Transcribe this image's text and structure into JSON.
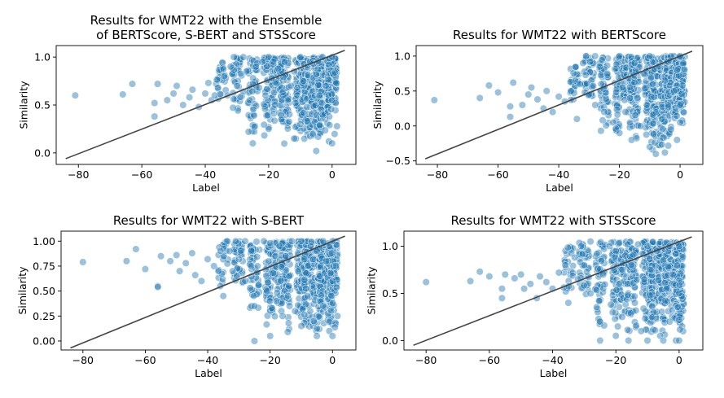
{
  "chart_data": [
    {
      "type": "scatter",
      "title": [
        "Results for WMT22 with the Ensemble",
        "of BERTScore, S-BERT and STSScore"
      ],
      "xlabel": "Label",
      "ylabel": "Similarity",
      "xlim": [
        -87,
        7.5
      ],
      "ylim": [
        -0.12,
        1.12
      ],
      "xticks": [
        -80,
        -60,
        -40,
        -20,
        0
      ],
      "xtick_labels": [
        "−80",
        "−60",
        "−40",
        "−20",
        "0"
      ],
      "yticks": [
        0.0,
        0.5,
        1.0
      ],
      "ytick_labels": [
        "0.0",
        "0.5",
        "1.0"
      ],
      "point_color": "#1f77b4",
      "fit_line": {
        "x": [
          -84,
          4
        ],
        "y": [
          -0.06,
          1.07
        ],
        "color": "#444444"
      },
      "points": [
        [
          -81,
          0.6
        ],
        [
          -66,
          0.61
        ],
        [
          -63,
          0.72
        ],
        [
          -56,
          0.52
        ],
        [
          -56,
          0.38
        ],
        [
          -55,
          0.72
        ],
        [
          -52,
          0.55
        ],
        [
          -50,
          0.62
        ],
        [
          -49,
          0.7
        ],
        [
          -47,
          0.5
        ],
        [
          -45,
          0.58
        ],
        [
          -44,
          0.66
        ],
        [
          -42,
          0.48
        ],
        [
          -40,
          0.62
        ],
        [
          -39,
          0.73
        ],
        [
          -38,
          0.55
        ],
        [
          -37,
          0.6
        ],
        [
          -36,
          0.68
        ],
        [
          -34,
          0.8
        ],
        [
          -33,
          0.6
        ],
        [
          -32,
          0.9
        ],
        [
          -31,
          1.0
        ],
        [
          -30,
          0.7
        ],
        [
          -28,
          0.64
        ],
        [
          -28,
          1.0
        ],
        [
          -27,
          0.85
        ],
        [
          -26,
          0.55
        ],
        [
          -25,
          0.72
        ],
        [
          -25,
          0.1
        ],
        [
          -24,
          0.9
        ],
        [
          -23,
          0.68
        ],
        [
          -22,
          0.95
        ],
        [
          -21,
          0.6
        ],
        [
          -20,
          1.0
        ],
        [
          -20,
          0.25
        ],
        [
          -19,
          0.78
        ],
        [
          -18,
          0.5
        ],
        [
          -17,
          0.88
        ],
        [
          -16,
          0.35
        ],
        [
          -15,
          0.95
        ],
        [
          -14,
          0.55
        ],
        [
          -13,
          0.7
        ],
        [
          -12,
          0.85
        ],
        [
          -12,
          0.15
        ],
        [
          -11,
          0.6
        ],
        [
          -10,
          1.0
        ],
        [
          -10,
          0.3
        ],
        [
          -9,
          0.75
        ],
        [
          -8,
          0.48
        ],
        [
          -7,
          0.95
        ],
        [
          -6,
          0.2
        ],
        [
          -5,
          0.82
        ],
        [
          -5,
          0.02
        ],
        [
          -4,
          0.6
        ],
        [
          -3,
          1.0
        ],
        [
          -3,
          0.4
        ],
        [
          -2,
          0.7
        ],
        [
          -1,
          0.92
        ],
        [
          -1,
          0.12
        ],
        [
          0,
          0.55
        ],
        [
          0,
          1.0
        ],
        [
          0,
          0.1
        ]
      ],
      "bands": [
        [
          -35,
          0.5,
          0.95,
          4
        ],
        [
          -30,
          0.4,
          1.0,
          6
        ],
        [
          -25,
          0.0,
          1.0,
          8
        ],
        [
          -20,
          0.1,
          1.0,
          10
        ],
        [
          -17,
          0.3,
          1.0,
          8
        ],
        [
          -15,
          0.0,
          1.0,
          12
        ],
        [
          -10,
          0.1,
          1.0,
          14
        ],
        [
          -8,
          0.1,
          1.0,
          12
        ],
        [
          -5,
          0.0,
          1.0,
          14
        ],
        [
          -3,
          0.1,
          1.0,
          12
        ],
        [
          0,
          0.1,
          1.0,
          18
        ]
      ]
    },
    {
      "type": "scatter",
      "title": [
        "Results for WMT22 with BERTScore"
      ],
      "xlabel": "Label",
      "ylabel": "Similarity",
      "xlim": [
        -87,
        7.5
      ],
      "ylim": [
        -0.55,
        1.15
      ],
      "xticks": [
        -80,
        -60,
        -40,
        -20,
        0
      ],
      "xtick_labels": [
        "−80",
        "−60",
        "−40",
        "−20",
        "0"
      ],
      "yticks": [
        -0.5,
        0.0,
        0.5,
        1.0
      ],
      "ytick_labels": [
        "−0.5",
        "0.0",
        "0.5",
        "1.0"
      ],
      "point_color": "#1f77b4",
      "fit_line": {
        "x": [
          -84,
          4
        ],
        "y": [
          -0.47,
          1.07
        ],
        "color": "#444444"
      },
      "points": [
        [
          -81,
          0.37
        ],
        [
          -66,
          0.4
        ],
        [
          -63,
          0.58
        ],
        [
          -60,
          0.48
        ],
        [
          -56,
          0.28
        ],
        [
          -56,
          0.13
        ],
        [
          -55,
          0.62
        ],
        [
          -52,
          0.3
        ],
        [
          -50,
          0.45
        ],
        [
          -49,
          0.55
        ],
        [
          -47,
          0.38
        ],
        [
          -45,
          0.25
        ],
        [
          -44,
          0.5
        ],
        [
          -42,
          0.2
        ],
        [
          -40,
          0.42
        ],
        [
          -38,
          0.35
        ],
        [
          -36,
          0.5
        ],
        [
          -34,
          0.1
        ],
        [
          -33,
          0.6
        ],
        [
          -32,
          0.9
        ],
        [
          -31,
          1.0
        ],
        [
          -30,
          0.45
        ],
        [
          -28,
          0.3
        ],
        [
          -28,
          1.0
        ],
        [
          -26,
          0.6
        ],
        [
          -25,
          0.2
        ],
        [
          -24,
          0.75
        ],
        [
          -22,
          0.05
        ],
        [
          -21,
          0.88
        ],
        [
          -20,
          1.0
        ],
        [
          -20,
          -0.1
        ],
        [
          -19,
          0.55
        ],
        [
          -18,
          0.2
        ],
        [
          -17,
          0.68
        ],
        [
          -16,
          -0.2
        ],
        [
          -15,
          0.9
        ],
        [
          -14,
          0.4
        ],
        [
          -13,
          0.0
        ],
        [
          -12,
          0.75
        ],
        [
          -11,
          0.3
        ],
        [
          -10,
          1.0
        ],
        [
          -10,
          -0.3
        ],
        [
          -9,
          0.6
        ],
        [
          -8,
          -0.4
        ],
        [
          -7,
          0.85
        ],
        [
          -6,
          0.1
        ],
        [
          -5,
          0.65
        ],
        [
          -5,
          -0.38
        ],
        [
          -4,
          0.3
        ],
        [
          -3,
          1.0
        ],
        [
          -3,
          -0.05
        ],
        [
          -2,
          0.5
        ],
        [
          -1,
          0.8
        ],
        [
          -1,
          -0.2
        ],
        [
          0,
          0.3
        ],
        [
          0,
          1.0
        ],
        [
          0,
          0.05
        ]
      ],
      "bands": [
        [
          -35,
          0.2,
          0.85,
          4
        ],
        [
          -30,
          0.1,
          1.0,
          6
        ],
        [
          -25,
          -0.2,
          1.0,
          8
        ],
        [
          -20,
          -0.1,
          1.0,
          10
        ],
        [
          -17,
          0.0,
          1.0,
          8
        ],
        [
          -15,
          -0.3,
          1.0,
          12
        ],
        [
          -10,
          -0.2,
          1.0,
          14
        ],
        [
          -8,
          -0.4,
          1.0,
          12
        ],
        [
          -5,
          -0.4,
          1.0,
          14
        ],
        [
          -3,
          -0.1,
          1.0,
          12
        ],
        [
          0,
          0.0,
          1.0,
          18
        ]
      ]
    },
    {
      "type": "scatter",
      "title": [
        "Results for WMT22 with S-BERT"
      ],
      "xlabel": "Label",
      "ylabel": "Similarity",
      "xlim": [
        -87,
        7.5
      ],
      "ylim": [
        -0.09,
        1.1
      ],
      "xticks": [
        -80,
        -60,
        -40,
        -20,
        0
      ],
      "xtick_labels": [
        "−80",
        "−60",
        "−40",
        "−20",
        "0"
      ],
      "yticks": [
        0.0,
        0.25,
        0.5,
        0.75,
        1.0
      ],
      "ytick_labels": [
        "0.00",
        "0.25",
        "0.50",
        "0.75",
        "1.00"
      ],
      "point_color": "#1f77b4",
      "fit_line": {
        "x": [
          -84,
          4
        ],
        "y": [
          -0.07,
          1.05
        ],
        "color": "#444444"
      },
      "points": [
        [
          -80,
          0.79
        ],
        [
          -66,
          0.8
        ],
        [
          -63,
          0.92
        ],
        [
          -60,
          0.72
        ],
        [
          -56,
          0.55
        ],
        [
          -56,
          0.54
        ],
        [
          -55,
          0.85
        ],
        [
          -52,
          0.8
        ],
        [
          -50,
          0.86
        ],
        [
          -49,
          0.7
        ],
        [
          -47,
          0.78
        ],
        [
          -45,
          0.88
        ],
        [
          -44,
          0.66
        ],
        [
          -42,
          0.6
        ],
        [
          -40,
          0.82
        ],
        [
          -38,
          0.75
        ],
        [
          -36,
          0.55
        ],
        [
          -35,
          0.45
        ],
        [
          -33,
          0.9
        ],
        [
          -32,
          0.7
        ],
        [
          -31,
          1.0
        ],
        [
          -30,
          0.82
        ],
        [
          -28,
          0.6
        ],
        [
          -28,
          1.0
        ],
        [
          -26,
          0.9
        ],
        [
          -25,
          0.35
        ],
        [
          -25,
          0.0
        ],
        [
          -24,
          0.75
        ],
        [
          -22,
          1.0
        ],
        [
          -21,
          0.5
        ],
        [
          -20,
          0.98
        ],
        [
          -20,
          0.05
        ],
        [
          -19,
          0.68
        ],
        [
          -18,
          0.4
        ],
        [
          -17,
          0.95
        ],
        [
          -16,
          0.25
        ],
        [
          -15,
          0.85
        ],
        [
          -14,
          0.55
        ],
        [
          -13,
          1.0
        ],
        [
          -12,
          0.3
        ],
        [
          -11,
          0.7
        ],
        [
          -10,
          1.0
        ],
        [
          -10,
          0.15
        ],
        [
          -9,
          0.82
        ],
        [
          -8,
          0.45
        ],
        [
          -7,
          0.95
        ],
        [
          -6,
          0.2
        ],
        [
          -5,
          0.9
        ],
        [
          -5,
          0.05
        ],
        [
          -4,
          0.65
        ],
        [
          -3,
          1.0
        ],
        [
          -3,
          0.35
        ],
        [
          -2,
          0.8
        ],
        [
          -1,
          0.95
        ],
        [
          -1,
          0.1
        ],
        [
          0,
          0.6
        ],
        [
          0,
          1.0
        ],
        [
          0,
          0.05
        ]
      ],
      "bands": [
        [
          -35,
          0.55,
          1.0,
          4
        ],
        [
          -30,
          0.45,
          1.0,
          6
        ],
        [
          -25,
          0.2,
          1.0,
          8
        ],
        [
          -20,
          0.1,
          1.0,
          10
        ],
        [
          -17,
          0.3,
          1.0,
          8
        ],
        [
          -15,
          0.05,
          1.0,
          12
        ],
        [
          -10,
          0.1,
          1.0,
          14
        ],
        [
          -8,
          0.1,
          1.0,
          12
        ],
        [
          -5,
          0.05,
          1.0,
          14
        ],
        [
          -3,
          0.1,
          1.0,
          12
        ],
        [
          0,
          0.05,
          1.0,
          18
        ]
      ]
    },
    {
      "type": "scatter",
      "title": [
        "Results for WMT22 with STSScore"
      ],
      "xlabel": "Label",
      "ylabel": "Similarity",
      "xlim": [
        -87,
        7.5
      ],
      "ylim": [
        -0.1,
        1.16
      ],
      "xticks": [
        -80,
        -60,
        -40,
        -20,
        0
      ],
      "xtick_labels": [
        "−80",
        "−60",
        "−40",
        "−20",
        "0"
      ],
      "yticks": [
        0.0,
        0.5,
        1.0
      ],
      "ytick_labels": [
        "0.0",
        "0.5",
        "1.0"
      ],
      "point_color": "#1f77b4",
      "fit_line": {
        "x": [
          -84,
          4
        ],
        "y": [
          -0.05,
          1.1
        ],
        "color": "#444444"
      },
      "points": [
        [
          -80,
          0.62
        ],
        [
          -66,
          0.63
        ],
        [
          -63,
          0.73
        ],
        [
          -60,
          0.68
        ],
        [
          -56,
          0.45
        ],
        [
          -56,
          0.55
        ],
        [
          -55,
          0.7
        ],
        [
          -52,
          0.66
        ],
        [
          -50,
          0.7
        ],
        [
          -49,
          0.55
        ],
        [
          -47,
          0.6
        ],
        [
          -45,
          0.45
        ],
        [
          -44,
          0.68
        ],
        [
          -42,
          0.62
        ],
        [
          -40,
          0.55
        ],
        [
          -38,
          0.72
        ],
        [
          -36,
          0.8
        ],
        [
          -35,
          0.4
        ],
        [
          -33,
          0.88
        ],
        [
          -32,
          0.65
        ],
        [
          -31,
          1.0
        ],
        [
          -30,
          0.8
        ],
        [
          -28,
          0.5
        ],
        [
          -28,
          1.05
        ],
        [
          -26,
          0.92
        ],
        [
          -25,
          0.2
        ],
        [
          -25,
          0.0
        ],
        [
          -24,
          0.7
        ],
        [
          -22,
          1.0
        ],
        [
          -21,
          0.3
        ],
        [
          -20,
          0.95
        ],
        [
          -20,
          0.05
        ],
        [
          -19,
          0.6
        ],
        [
          -18,
          0.25
        ],
        [
          -17,
          0.9
        ],
        [
          -16,
          0.0
        ],
        [
          -15,
          0.8
        ],
        [
          -14,
          0.4
        ],
        [
          -13,
          1.02
        ],
        [
          -12,
          0.1
        ],
        [
          -11,
          0.65
        ],
        [
          -10,
          1.0
        ],
        [
          -10,
          0.0
        ],
        [
          -9,
          0.75
        ],
        [
          -8,
          0.3
        ],
        [
          -7,
          0.95
        ],
        [
          -6,
          0.05
        ],
        [
          -5,
          0.85
        ],
        [
          -5,
          0.0
        ],
        [
          -4,
          0.55
        ],
        [
          -3,
          1.0
        ],
        [
          -3,
          0.2
        ],
        [
          -2,
          0.7
        ],
        [
          -1,
          0.92
        ],
        [
          -1,
          0.0
        ],
        [
          0,
          0.5
        ],
        [
          0,
          1.0
        ],
        [
          0,
          0.0
        ]
      ],
      "bands": [
        [
          -35,
          0.45,
          1.0,
          4
        ],
        [
          -30,
          0.35,
          1.05,
          6
        ],
        [
          -25,
          0.0,
          1.05,
          8
        ],
        [
          -20,
          0.0,
          1.05,
          10
        ],
        [
          -17,
          0.15,
          1.05,
          8
        ],
        [
          -15,
          0.0,
          1.05,
          12
        ],
        [
          -10,
          0.0,
          1.05,
          14
        ],
        [
          -8,
          0.0,
          1.05,
          12
        ],
        [
          -5,
          0.0,
          1.05,
          14
        ],
        [
          -3,
          0.0,
          1.05,
          12
        ],
        [
          0,
          0.0,
          1.05,
          18
        ]
      ]
    }
  ]
}
